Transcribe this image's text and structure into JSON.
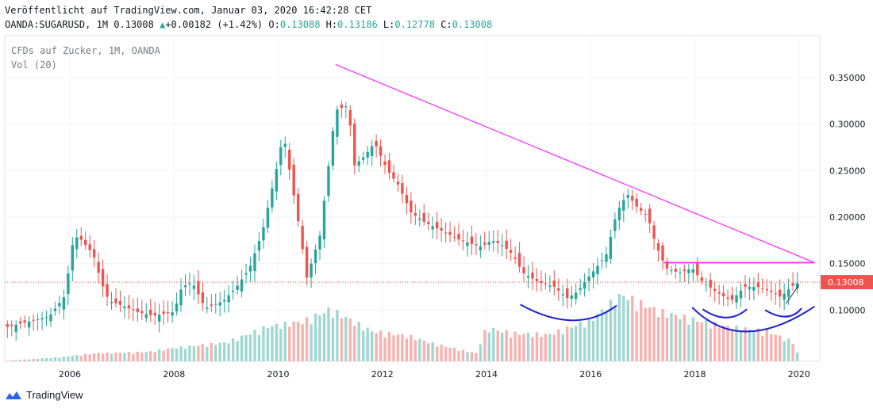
{
  "header": {
    "published": "Veröffentlicht auf TradingView.com, Januar 03, 2020 16:42:28 CET",
    "symbol": "OANDA:SUGARUSD, 1M",
    "last": "0.13008",
    "change_arrow": "▲",
    "change": "+0.00182 (+1.42%)",
    "o_label": "O:",
    "o": "0.13088",
    "h_label": "H:",
    "h": "0.13186",
    "l_label": "L:",
    "l": "0.12778",
    "c_label": "C:",
    "c": "0.13008"
  },
  "legend": {
    "instrument": "CFDs auf Zucker, 1M, OANDA",
    "volume": "Vol (20)"
  },
  "footer": {
    "brand": "TradingView",
    "logo_icon": "tradingview-logo-icon"
  },
  "colors": {
    "up": "#26a69a",
    "down": "#ef5350",
    "vol_up": "#9fd8d1",
    "vol_down": "#f7b2b0",
    "trendline": "#ff33ff",
    "arc": "#1e22d6",
    "grid": "#f0f3fa",
    "price_line": "#ef5350"
  },
  "chart_data": {
    "type": "candlestick",
    "interval": "1M",
    "xrange": [
      2004.75,
      2020.4
    ],
    "ylim": [
      0.045,
      0.395
    ],
    "yticks": [
      0.1,
      0.15,
      0.2,
      0.25,
      0.3,
      0.35
    ],
    "ytick_labels": [
      "0.10000",
      "0.15000",
      "0.20000",
      "0.25000",
      "0.30000",
      "0.35000"
    ],
    "xticks": [
      2006,
      2008,
      2010,
      2012,
      2014,
      2016,
      2018,
      2020
    ],
    "xtick_labels": [
      "2006",
      "2008",
      "2010",
      "2012",
      "2014",
      "2016",
      "2018",
      "2020"
    ],
    "grid": true,
    "last_price": 0.13008,
    "last_price_label": "0.13008",
    "price_anchors": [
      [
        2004.8,
        0.082
      ],
      [
        2005.3,
        0.089
      ],
      [
        2005.6,
        0.093
      ],
      [
        2005.9,
        0.115
      ],
      [
        2006.05,
        0.17
      ],
      [
        2006.15,
        0.18
      ],
      [
        2006.45,
        0.16
      ],
      [
        2006.6,
        0.13
      ],
      [
        2006.75,
        0.11
      ],
      [
        2007.0,
        0.105
      ],
      [
        2007.3,
        0.098
      ],
      [
        2007.6,
        0.094
      ],
      [
        2008.0,
        0.098
      ],
      [
        2008.15,
        0.125
      ],
      [
        2008.35,
        0.13
      ],
      [
        2008.6,
        0.102
      ],
      [
        2008.95,
        0.11
      ],
      [
        2009.2,
        0.125
      ],
      [
        2009.45,
        0.145
      ],
      [
        2009.7,
        0.185
      ],
      [
        2009.9,
        0.235
      ],
      [
        2010.0,
        0.26
      ],
      [
        2010.1,
        0.29
      ],
      [
        2010.4,
        0.19
      ],
      [
        2010.55,
        0.135
      ],
      [
        2010.8,
        0.18
      ],
      [
        2011.0,
        0.27
      ],
      [
        2011.1,
        0.315
      ],
      [
        2011.35,
        0.32
      ],
      [
        2011.45,
        0.255
      ],
      [
        2011.65,
        0.265
      ],
      [
        2011.85,
        0.28
      ],
      [
        2012.1,
        0.25
      ],
      [
        2012.3,
        0.235
      ],
      [
        2012.55,
        0.205
      ],
      [
        2012.8,
        0.195
      ],
      [
        2013.15,
        0.185
      ],
      [
        2013.5,
        0.175
      ],
      [
        2013.9,
        0.168
      ],
      [
        2014.1,
        0.175
      ],
      [
        2014.3,
        0.17
      ],
      [
        2014.5,
        0.16
      ],
      [
        2014.7,
        0.14
      ],
      [
        2015.0,
        0.13
      ],
      [
        2015.3,
        0.125
      ],
      [
        2015.55,
        0.113
      ],
      [
        2015.75,
        0.12
      ],
      [
        2015.95,
        0.135
      ],
      [
        2016.1,
        0.145
      ],
      [
        2016.3,
        0.16
      ],
      [
        2016.5,
        0.205
      ],
      [
        2016.7,
        0.225
      ],
      [
        2016.9,
        0.21
      ],
      [
        2017.1,
        0.2
      ],
      [
        2017.25,
        0.17
      ],
      [
        2017.45,
        0.145
      ],
      [
        2017.7,
        0.14
      ],
      [
        2017.95,
        0.145
      ],
      [
        2018.15,
        0.13
      ],
      [
        2018.4,
        0.12
      ],
      [
        2018.7,
        0.11
      ],
      [
        2018.95,
        0.125
      ],
      [
        2019.2,
        0.125
      ],
      [
        2019.45,
        0.12
      ],
      [
        2019.65,
        0.114
      ],
      [
        2019.85,
        0.125
      ],
      [
        2020.0,
        0.13008
      ]
    ],
    "volume_anchors": [
      [
        2004.8,
        0.01
      ],
      [
        2005.8,
        0.06
      ],
      [
        2006.5,
        0.12
      ],
      [
        2007.5,
        0.14
      ],
      [
        2008.0,
        0.2
      ],
      [
        2009.0,
        0.28
      ],
      [
        2009.8,
        0.52
      ],
      [
        2010.5,
        0.6
      ],
      [
        2011.0,
        0.78
      ],
      [
        2011.8,
        0.45
      ],
      [
        2012.5,
        0.38
      ],
      [
        2013.0,
        0.26
      ],
      [
        2013.8,
        0.12
      ],
      [
        2014.0,
        0.5
      ],
      [
        2014.5,
        0.42
      ],
      [
        2015.2,
        0.4
      ],
      [
        2016.0,
        0.62
      ],
      [
        2016.6,
        1.0
      ],
      [
        2017.3,
        0.75
      ],
      [
        2018.0,
        0.62
      ],
      [
        2018.6,
        0.52
      ],
      [
        2019.4,
        0.45
      ],
      [
        2019.9,
        0.28
      ],
      [
        2020.0,
        0.05
      ]
    ],
    "drawings": {
      "trendline": [
        [
          2011.1,
          0.364
        ],
        [
          2020.3,
          0.151
        ]
      ],
      "horizontal": [
        [
          2017.4,
          0.151
        ],
        [
          2020.3,
          0.151
        ]
      ],
      "small_trend": [
        [
          2019.75,
          0.107
        ],
        [
          2020.0,
          0.127
        ]
      ],
      "arcs": [
        [
          [
            2014.65,
            0.106
          ],
          [
            2015.65,
            0.089
          ],
          [
            2016.5,
            0.105
          ]
        ],
        [
          [
            2017.95,
            0.103
          ],
          [
            2019.0,
            0.077
          ],
          [
            2020.3,
            0.104
          ]
        ],
        [
          [
            2018.15,
            0.101
          ],
          [
            2018.6,
            0.092
          ],
          [
            2019.0,
            0.101
          ]
        ],
        [
          [
            2019.35,
            0.1
          ],
          [
            2019.75,
            0.093
          ],
          [
            2020.05,
            0.102
          ]
        ]
      ]
    }
  }
}
